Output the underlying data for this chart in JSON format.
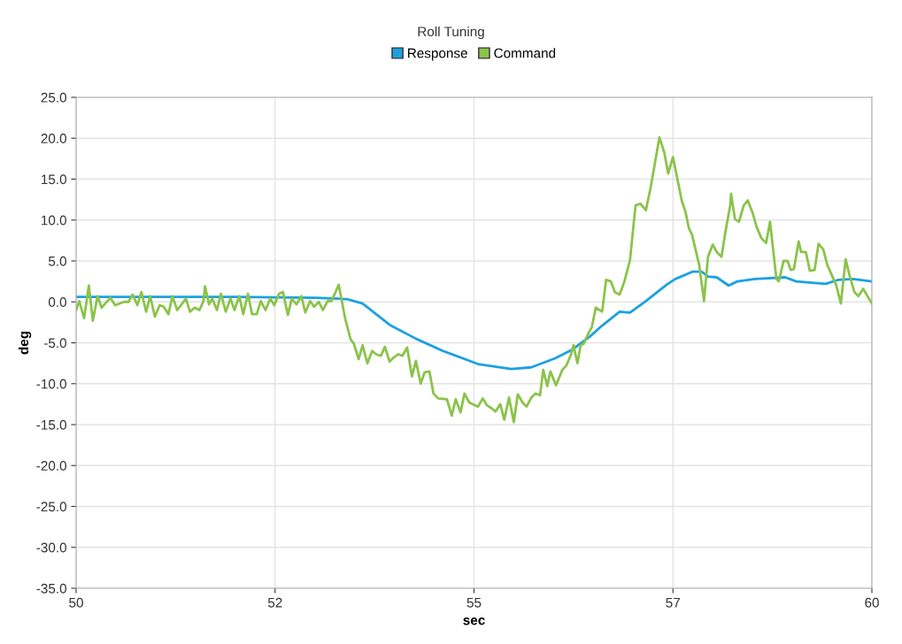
{
  "chart_data": {
    "type": "line",
    "title": "Roll Tuning",
    "xlabel": "sec",
    "ylabel": "deg",
    "legend": "top",
    "grid": true,
    "marker": "none",
    "line_style": "solid",
    "xlim": [
      50,
      60
    ],
    "xticks": [
      50,
      {
        "value": 52.5,
        "label": "52"
      },
      55,
      {
        "value": 57.5,
        "label": "57"
      },
      60
    ],
    "ylim": [
      -35,
      25
    ],
    "yticks": [
      {
        "value": -35,
        "label": "-35.0"
      },
      {
        "value": -30,
        "label": "-30.0"
      },
      {
        "value": -25,
        "label": "-25.0"
      },
      {
        "value": -20,
        "label": "-20.0"
      },
      {
        "value": -15,
        "label": "-15.0"
      },
      {
        "value": -10,
        "label": "-10.0"
      },
      {
        "value": -5,
        "label": "-5.0"
      },
      {
        "value": 0,
        "label": "0.0"
      },
      {
        "value": 5,
        "label": "5.0"
      },
      {
        "value": 10,
        "label": "10.0"
      },
      {
        "value": 15,
        "label": "15.0"
      },
      {
        "value": 20,
        "label": "20.0"
      },
      {
        "value": 25,
        "label": "25.0"
      }
    ],
    "series": [
      {
        "name": "Response",
        "color": "#1ba1e2",
        "x": [
          50.0,
          51.0,
          52.0,
          53.0,
          53.3,
          53.42,
          53.6,
          53.94,
          54.27,
          54.61,
          55.05,
          55.47,
          55.72,
          56.02,
          56.24,
          56.46,
          56.61,
          56.83,
          56.96,
          57.16,
          57.42,
          57.53,
          57.75,
          57.86,
          57.94,
          58.05,
          58.2,
          58.31,
          58.53,
          58.91,
          59.05,
          59.42,
          59.58,
          59.76,
          60.0
        ],
        "values": [
          0.6,
          0.6,
          0.6,
          0.5,
          0.4,
          0.3,
          -0.2,
          -2.8,
          -4.5,
          -6.0,
          -7.6,
          -8.2,
          -8.0,
          -6.9,
          -5.8,
          -4.2,
          -2.9,
          -1.2,
          -1.3,
          0.1,
          2.1,
          2.8,
          3.7,
          3.7,
          3.1,
          3.0,
          2.0,
          2.5,
          2.8,
          3.0,
          2.5,
          2.2,
          2.7,
          2.8,
          2.5
        ]
      },
      {
        "name": "Command",
        "color": "#8bc34a",
        "x": [
          50.0,
          50.04,
          50.1,
          50.16,
          50.21,
          50.27,
          50.32,
          50.43,
          50.49,
          50.6,
          50.66,
          50.71,
          50.77,
          50.82,
          50.88,
          50.93,
          50.99,
          51.05,
          51.1,
          51.16,
          51.21,
          51.27,
          51.38,
          51.43,
          51.49,
          51.55,
          51.6,
          51.62,
          51.67,
          51.71,
          51.77,
          51.82,
          51.88,
          51.94,
          51.99,
          52.05,
          52.1,
          52.16,
          52.21,
          52.27,
          52.32,
          52.38,
          52.44,
          52.49,
          52.55,
          52.6,
          52.66,
          52.71,
          52.77,
          52.83,
          52.88,
          52.94,
          52.99,
          53.05,
          53.1,
          53.16,
          53.21,
          53.3,
          53.38,
          53.45,
          53.49,
          53.55,
          53.6,
          53.66,
          53.72,
          53.77,
          53.83,
          53.88,
          53.94,
          53.99,
          54.05,
          54.1,
          54.16,
          54.22,
          54.27,
          54.33,
          54.38,
          54.44,
          54.49,
          54.55,
          54.66,
          54.72,
          54.77,
          54.83,
          54.88,
          54.94,
          55.05,
          55.11,
          55.16,
          55.22,
          55.27,
          55.33,
          55.38,
          55.44,
          55.5,
          55.55,
          55.61,
          55.66,
          55.72,
          55.77,
          55.83,
          55.87,
          55.92,
          55.96,
          56.03,
          56.11,
          56.16,
          56.22,
          56.25,
          56.3,
          56.34,
          56.38,
          56.44,
          56.48,
          56.53,
          56.61,
          56.66,
          56.72,
          56.77,
          56.83,
          56.89,
          56.96,
          57.03,
          57.09,
          57.16,
          57.22,
          57.33,
          57.39,
          57.44,
          57.5,
          57.61,
          57.66,
          57.7,
          57.74,
          57.83,
          57.89,
          57.94,
          58.0,
          58.05,
          58.11,
          58.16,
          58.22,
          58.23,
          58.28,
          58.33,
          58.39,
          58.44,
          58.5,
          58.55,
          58.61,
          58.67,
          58.72,
          58.8,
          58.83,
          58.89,
          58.94,
          58.98,
          59.02,
          59.08,
          59.11,
          59.17,
          59.22,
          59.28,
          59.33,
          59.39,
          59.44,
          59.55,
          59.61,
          59.67,
          59.72,
          59.78,
          59.83,
          59.89,
          60.0
        ],
        "values": [
          -1.0,
          0.1,
          -2.0,
          2.0,
          -2.3,
          0.7,
          -0.7,
          0.5,
          -0.4,
          0,
          0,
          0.9,
          -0.4,
          1.2,
          -1.2,
          0.7,
          -1.8,
          -0.4,
          -0.6,
          -1.5,
          0.7,
          -1.0,
          0.4,
          -1.2,
          -0.7,
          -1.0,
          0.1,
          1.9,
          -0.3,
          0.4,
          -1.0,
          1.0,
          -1.2,
          0.4,
          -1.0,
          0.7,
          -1.5,
          1.0,
          -1.5,
          -1.5,
          0.1,
          -1.0,
          0.4,
          -0.4,
          1.0,
          1.2,
          -1.6,
          0.4,
          -0.3,
          0.7,
          -1.3,
          0.1,
          -0.6,
          0,
          -1.0,
          0.1,
          0.1,
          2.1,
          -2.0,
          -4.6,
          -5.1,
          -7.0,
          -5.3,
          -7.5,
          -6.0,
          -6.4,
          -6.6,
          -5.5,
          -7.3,
          -6.8,
          -6.4,
          -6.6,
          -5.6,
          -9.1,
          -7.2,
          -10.0,
          -8.6,
          -8.5,
          -11.2,
          -11.8,
          -11.9,
          -13.9,
          -11.9,
          -13.5,
          -11.2,
          -12.3,
          -12.8,
          -11.8,
          -12.6,
          -13.0,
          -13.4,
          -12.5,
          -14.4,
          -11.7,
          -14.7,
          -11.3,
          -12.3,
          -12.8,
          -11.7,
          -11.2,
          -11.4,
          -8.3,
          -10.3,
          -8.5,
          -10.2,
          -8.3,
          -7.8,
          -6.4,
          -5.3,
          -7.5,
          -5.3,
          -5.1,
          -3.8,
          -3.1,
          -0.7,
          -1.2,
          2.7,
          2.5,
          1.2,
          0.9,
          2.5,
          5.1,
          11.8,
          12.0,
          11.2,
          14.0,
          20.1,
          18.3,
          15.7,
          17.7,
          12.4,
          10.9,
          9.0,
          8.2,
          4.5,
          0.1,
          5.5,
          7.0,
          6.1,
          5.5,
          8.6,
          11.8,
          13.2,
          10.1,
          9.8,
          11.8,
          12.4,
          10.9,
          9.2,
          7.8,
          7.2,
          9.8,
          2.8,
          2.5,
          5.0,
          5.0,
          3.9,
          4.0,
          7.4,
          6.1,
          6.1,
          3.8,
          3.9,
          7.1,
          6.4,
          4.5,
          2.1,
          -0.2,
          5.2,
          3.2,
          1.2,
          0.7,
          1.6,
          -0.2
        ]
      }
    ]
  }
}
